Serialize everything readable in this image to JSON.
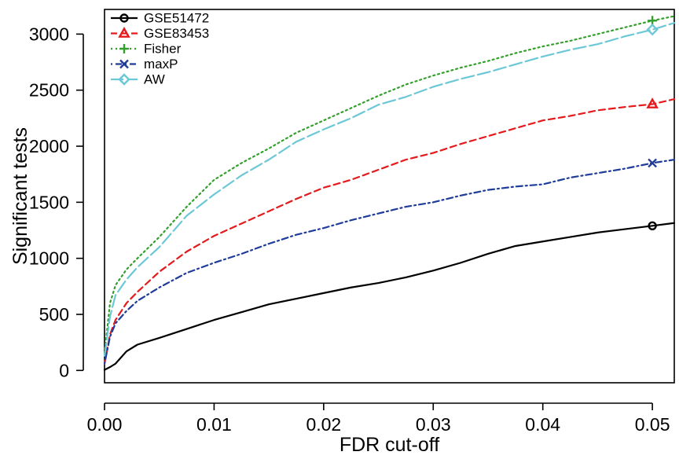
{
  "chart_data": {
    "type": "line",
    "xlabel": "FDR cut-off",
    "ylabel": "Significant tests",
    "xlim": [
      0.0,
      0.052
    ],
    "ylim": [
      -110,
      3220
    ],
    "x_ticks": [
      0.0,
      0.01,
      0.02,
      0.03,
      0.04,
      0.05
    ],
    "x_tick_labels": [
      "0.00",
      "0.01",
      "0.02",
      "0.03",
      "0.04",
      "0.05"
    ],
    "y_ticks": [
      0,
      500,
      1000,
      1500,
      2000,
      2500,
      3000
    ],
    "y_tick_labels": [
      "0",
      "500",
      "1000",
      "1500",
      "2000",
      "2500",
      "3000"
    ],
    "legend_position": "top-left",
    "grid": false,
    "series": [
      {
        "name": "GSE51472",
        "color": "#000000",
        "line_style": "solid",
        "marker": "circle",
        "marker_at": 0.05,
        "x": [
          0.0,
          0.0005,
          0.001,
          0.002,
          0.003,
          0.005,
          0.0075,
          0.01,
          0.0125,
          0.015,
          0.0175,
          0.02,
          0.0225,
          0.025,
          0.0275,
          0.03,
          0.0325,
          0.035,
          0.0375,
          0.04,
          0.0425,
          0.045,
          0.0475,
          0.05,
          0.052
        ],
        "values": [
          5,
          30,
          60,
          170,
          230,
          290,
          370,
          450,
          520,
          590,
          640,
          690,
          740,
          780,
          830,
          890,
          960,
          1040,
          1110,
          1150,
          1190,
          1230,
          1260,
          1290,
          1315
        ]
      },
      {
        "name": "GSE83453",
        "color": "#e41a1c",
        "line_style": "dashed",
        "marker": "triangle",
        "marker_at": 0.05,
        "x": [
          0.0,
          0.0005,
          0.001,
          0.002,
          0.003,
          0.005,
          0.0075,
          0.01,
          0.0125,
          0.015,
          0.0175,
          0.02,
          0.0225,
          0.025,
          0.0275,
          0.03,
          0.0325,
          0.035,
          0.0375,
          0.04,
          0.0425,
          0.045,
          0.0475,
          0.05,
          0.052
        ],
        "values": [
          60,
          320,
          450,
          600,
          700,
          880,
          1060,
          1200,
          1310,
          1420,
          1530,
          1630,
          1700,
          1790,
          1880,
          1940,
          2020,
          2090,
          2160,
          2230,
          2270,
          2320,
          2350,
          2375,
          2420
        ]
      },
      {
        "name": "Fisher",
        "color": "#33a02c",
        "line_style": "dotted",
        "marker": "plus",
        "marker_at": 0.05,
        "x": [
          0.0,
          0.0005,
          0.001,
          0.002,
          0.003,
          0.005,
          0.0075,
          0.01,
          0.0125,
          0.015,
          0.0175,
          0.02,
          0.0225,
          0.025,
          0.0275,
          0.03,
          0.0325,
          0.035,
          0.0375,
          0.04,
          0.0425,
          0.045,
          0.0475,
          0.05,
          0.052
        ],
        "values": [
          150,
          600,
          760,
          900,
          1000,
          1190,
          1460,
          1700,
          1850,
          1980,
          2120,
          2230,
          2340,
          2450,
          2550,
          2630,
          2700,
          2760,
          2830,
          2890,
          2940,
          3000,
          3060,
          3120,
          3160
        ]
      },
      {
        "name": "maxP",
        "color": "#1f3c99",
        "line_style": "dotdash",
        "marker": "x",
        "marker_at": 0.05,
        "x": [
          0.0,
          0.0005,
          0.001,
          0.002,
          0.003,
          0.005,
          0.0075,
          0.01,
          0.0125,
          0.015,
          0.0175,
          0.02,
          0.0225,
          0.025,
          0.0275,
          0.03,
          0.0325,
          0.035,
          0.0375,
          0.04,
          0.0425,
          0.045,
          0.0475,
          0.05,
          0.052
        ],
        "values": [
          60,
          300,
          420,
          530,
          620,
          740,
          870,
          960,
          1040,
          1130,
          1210,
          1270,
          1340,
          1400,
          1460,
          1500,
          1560,
          1610,
          1640,
          1660,
          1720,
          1760,
          1800,
          1850,
          1880
        ]
      },
      {
        "name": "AW",
        "color": "#6cc7d6",
        "line_style": "longdash",
        "marker": "diamond",
        "marker_at": 0.05,
        "x": [
          0.0,
          0.0005,
          0.001,
          0.002,
          0.003,
          0.005,
          0.0075,
          0.01,
          0.0125,
          0.015,
          0.0175,
          0.02,
          0.0225,
          0.025,
          0.0275,
          0.03,
          0.0325,
          0.035,
          0.0375,
          0.04,
          0.0425,
          0.045,
          0.0475,
          0.05,
          0.052
        ],
        "values": [
          130,
          480,
          670,
          810,
          920,
          1100,
          1380,
          1570,
          1740,
          1880,
          2040,
          2150,
          2250,
          2370,
          2440,
          2530,
          2600,
          2660,
          2730,
          2800,
          2860,
          2910,
          2980,
          3040,
          3100
        ]
      }
    ]
  }
}
